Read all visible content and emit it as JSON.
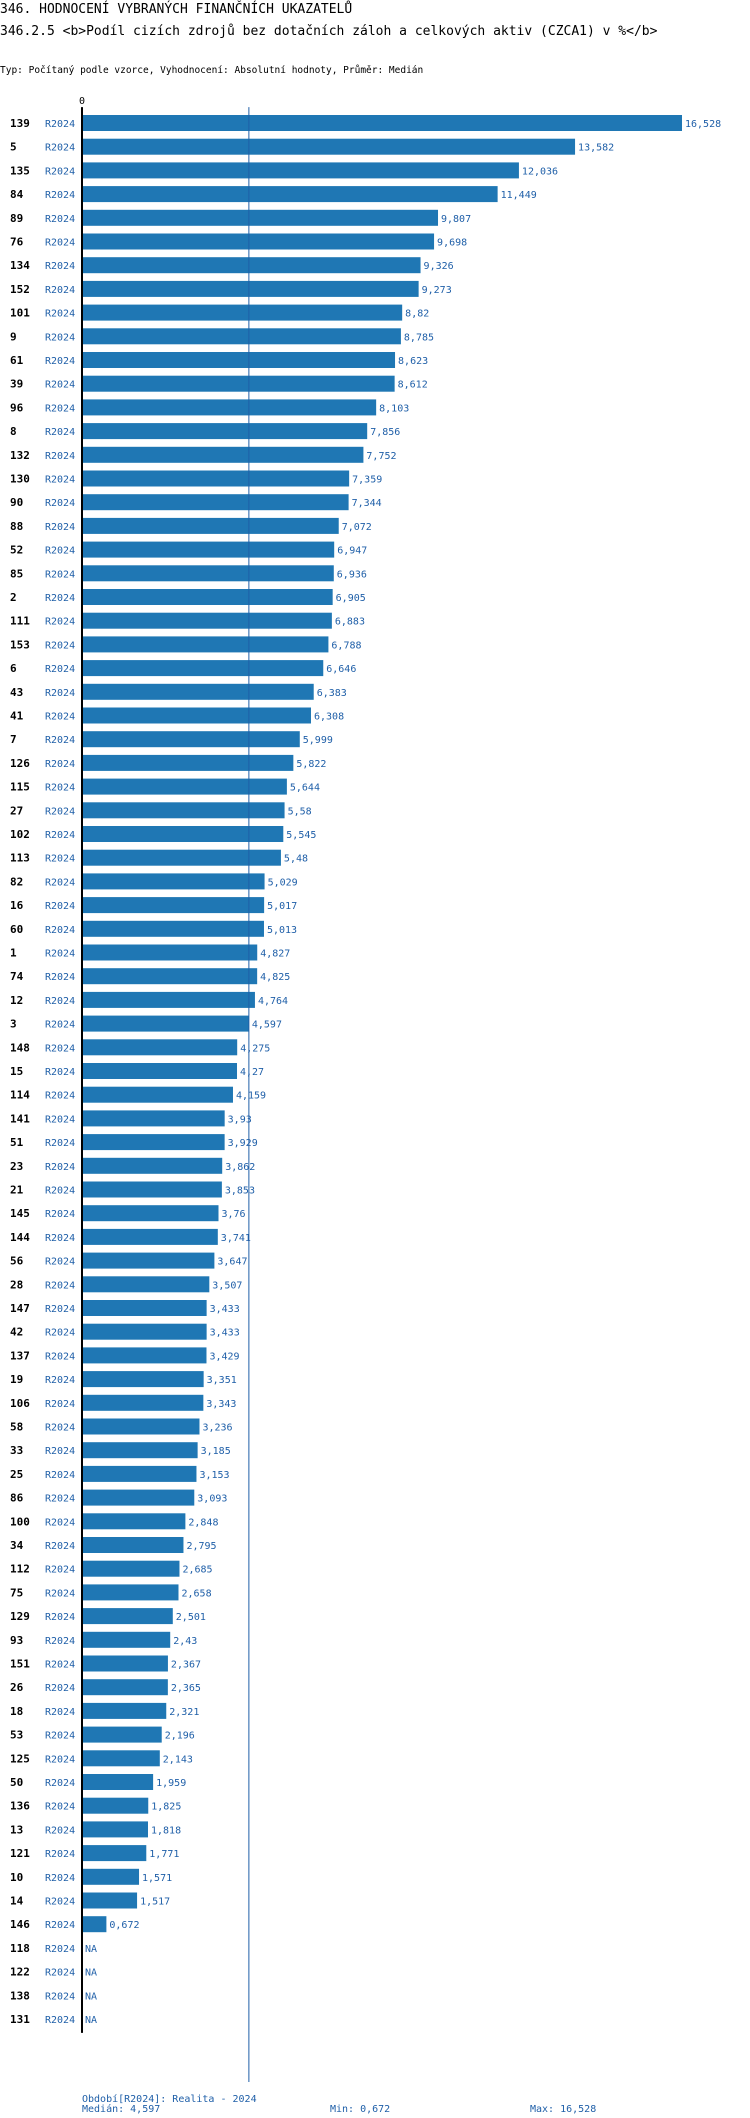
{
  "header": {
    "title": "346. HODNOCENÍ VYBRANÝCH FINANČNÍCH UKAZATELŮ",
    "subtitle": "346.2.5 <b>Podíl cizích zdrojů bez dotačních záloh  a celkových aktiv (CZCA1) v %</b>",
    "type_line": "Typ: Počítaný podle vzorce, Vyhodnocení: Absolutní hodnoty, Průměr: Medián"
  },
  "chart_data": {
    "type": "bar",
    "orientation": "horizontal",
    "axis_zero_label": "0",
    "period_label": "R2024",
    "median_line_value": 4.597,
    "colors": {
      "bar": "#1f77b4",
      "label": "#1f5fa8",
      "text": "#000000"
    },
    "rows": [
      {
        "id": "139",
        "value": 16.528,
        "label": "16,528"
      },
      {
        "id": "5",
        "value": 13.582,
        "label": "13,582"
      },
      {
        "id": "135",
        "value": 12.036,
        "label": "12,036"
      },
      {
        "id": "84",
        "value": 11.449,
        "label": "11,449"
      },
      {
        "id": "89",
        "value": 9.807,
        "label": "9,807"
      },
      {
        "id": "76",
        "value": 9.698,
        "label": "9,698"
      },
      {
        "id": "134",
        "value": 9.326,
        "label": "9,326"
      },
      {
        "id": "152",
        "value": 9.273,
        "label": "9,273"
      },
      {
        "id": "101",
        "value": 8.82,
        "label": "8,82"
      },
      {
        "id": "9",
        "value": 8.785,
        "label": "8,785"
      },
      {
        "id": "61",
        "value": 8.623,
        "label": "8,623"
      },
      {
        "id": "39",
        "value": 8.612,
        "label": "8,612"
      },
      {
        "id": "96",
        "value": 8.103,
        "label": "8,103"
      },
      {
        "id": "8",
        "value": 7.856,
        "label": "7,856"
      },
      {
        "id": "132",
        "value": 7.752,
        "label": "7,752"
      },
      {
        "id": "130",
        "value": 7.359,
        "label": "7,359"
      },
      {
        "id": "90",
        "value": 7.344,
        "label": "7,344"
      },
      {
        "id": "88",
        "value": 7.072,
        "label": "7,072"
      },
      {
        "id": "52",
        "value": 6.947,
        "label": "6,947"
      },
      {
        "id": "85",
        "value": 6.936,
        "label": "6,936"
      },
      {
        "id": "2",
        "value": 6.905,
        "label": "6,905"
      },
      {
        "id": "111",
        "value": 6.883,
        "label": "6,883"
      },
      {
        "id": "153",
        "value": 6.788,
        "label": "6,788"
      },
      {
        "id": "6",
        "value": 6.646,
        "label": "6,646"
      },
      {
        "id": "43",
        "value": 6.383,
        "label": "6,383"
      },
      {
        "id": "41",
        "value": 6.308,
        "label": "6,308"
      },
      {
        "id": "7",
        "value": 5.999,
        "label": "5,999"
      },
      {
        "id": "126",
        "value": 5.822,
        "label": "5,822"
      },
      {
        "id": "115",
        "value": 5.644,
        "label": "5,644"
      },
      {
        "id": "27",
        "value": 5.58,
        "label": "5,58"
      },
      {
        "id": "102",
        "value": 5.545,
        "label": "5,545"
      },
      {
        "id": "113",
        "value": 5.48,
        "label": "5,48"
      },
      {
        "id": "82",
        "value": 5.029,
        "label": "5,029"
      },
      {
        "id": "16",
        "value": 5.017,
        "label": "5,017"
      },
      {
        "id": "60",
        "value": 5.013,
        "label": "5,013"
      },
      {
        "id": "1",
        "value": 4.827,
        "label": "4,827"
      },
      {
        "id": "74",
        "value": 4.825,
        "label": "4,825"
      },
      {
        "id": "12",
        "value": 4.764,
        "label": "4,764"
      },
      {
        "id": "3",
        "value": 4.597,
        "label": "4,597"
      },
      {
        "id": "148",
        "value": 4.275,
        "label": "4,275"
      },
      {
        "id": "15",
        "value": 4.27,
        "label": "4,27"
      },
      {
        "id": "114",
        "value": 4.159,
        "label": "4,159"
      },
      {
        "id": "141",
        "value": 3.93,
        "label": "3,93"
      },
      {
        "id": "51",
        "value": 3.929,
        "label": "3,929"
      },
      {
        "id": "23",
        "value": 3.862,
        "label": "3,862"
      },
      {
        "id": "21",
        "value": 3.853,
        "label": "3,853"
      },
      {
        "id": "145",
        "value": 3.76,
        "label": "3,76"
      },
      {
        "id": "144",
        "value": 3.741,
        "label": "3,741"
      },
      {
        "id": "56",
        "value": 3.647,
        "label": "3,647"
      },
      {
        "id": "28",
        "value": 3.507,
        "label": "3,507"
      },
      {
        "id": "147",
        "value": 3.433,
        "label": "3,433"
      },
      {
        "id": "42",
        "value": 3.433,
        "label": "3,433"
      },
      {
        "id": "137",
        "value": 3.429,
        "label": "3,429"
      },
      {
        "id": "19",
        "value": 3.351,
        "label": "3,351"
      },
      {
        "id": "106",
        "value": 3.343,
        "label": "3,343"
      },
      {
        "id": "58",
        "value": 3.236,
        "label": "3,236"
      },
      {
        "id": "33",
        "value": 3.185,
        "label": "3,185"
      },
      {
        "id": "25",
        "value": 3.153,
        "label": "3,153"
      },
      {
        "id": "86",
        "value": 3.093,
        "label": "3,093"
      },
      {
        "id": "100",
        "value": 2.848,
        "label": "2,848"
      },
      {
        "id": "34",
        "value": 2.795,
        "label": "2,795"
      },
      {
        "id": "112",
        "value": 2.685,
        "label": "2,685"
      },
      {
        "id": "75",
        "value": 2.658,
        "label": "2,658"
      },
      {
        "id": "129",
        "value": 2.501,
        "label": "2,501"
      },
      {
        "id": "93",
        "value": 2.43,
        "label": "2,43"
      },
      {
        "id": "151",
        "value": 2.367,
        "label": "2,367"
      },
      {
        "id": "26",
        "value": 2.365,
        "label": "2,365"
      },
      {
        "id": "18",
        "value": 2.321,
        "label": "2,321"
      },
      {
        "id": "53",
        "value": 2.196,
        "label": "2,196"
      },
      {
        "id": "125",
        "value": 2.143,
        "label": "2,143"
      },
      {
        "id": "50",
        "value": 1.959,
        "label": "1,959"
      },
      {
        "id": "136",
        "value": 1.825,
        "label": "1,825"
      },
      {
        "id": "13",
        "value": 1.818,
        "label": "1,818"
      },
      {
        "id": "121",
        "value": 1.771,
        "label": "1,771"
      },
      {
        "id": "10",
        "value": 1.571,
        "label": "1,571"
      },
      {
        "id": "14",
        "value": 1.517,
        "label": "1,517"
      },
      {
        "id": "146",
        "value": 0.672,
        "label": "0,672"
      },
      {
        "id": "118",
        "value": null,
        "label": "NA"
      },
      {
        "id": "122",
        "value": null,
        "label": "NA"
      },
      {
        "id": "138",
        "value": null,
        "label": "NA"
      },
      {
        "id": "131",
        "value": null,
        "label": "NA"
      }
    ],
    "xlim": [
      0,
      16.528
    ]
  },
  "footer": {
    "period": "Období[R2024]: Realita - 2024",
    "median": "Medián: 4,597",
    "min": "Min: 0,672",
    "max": "Max: 16,528"
  }
}
